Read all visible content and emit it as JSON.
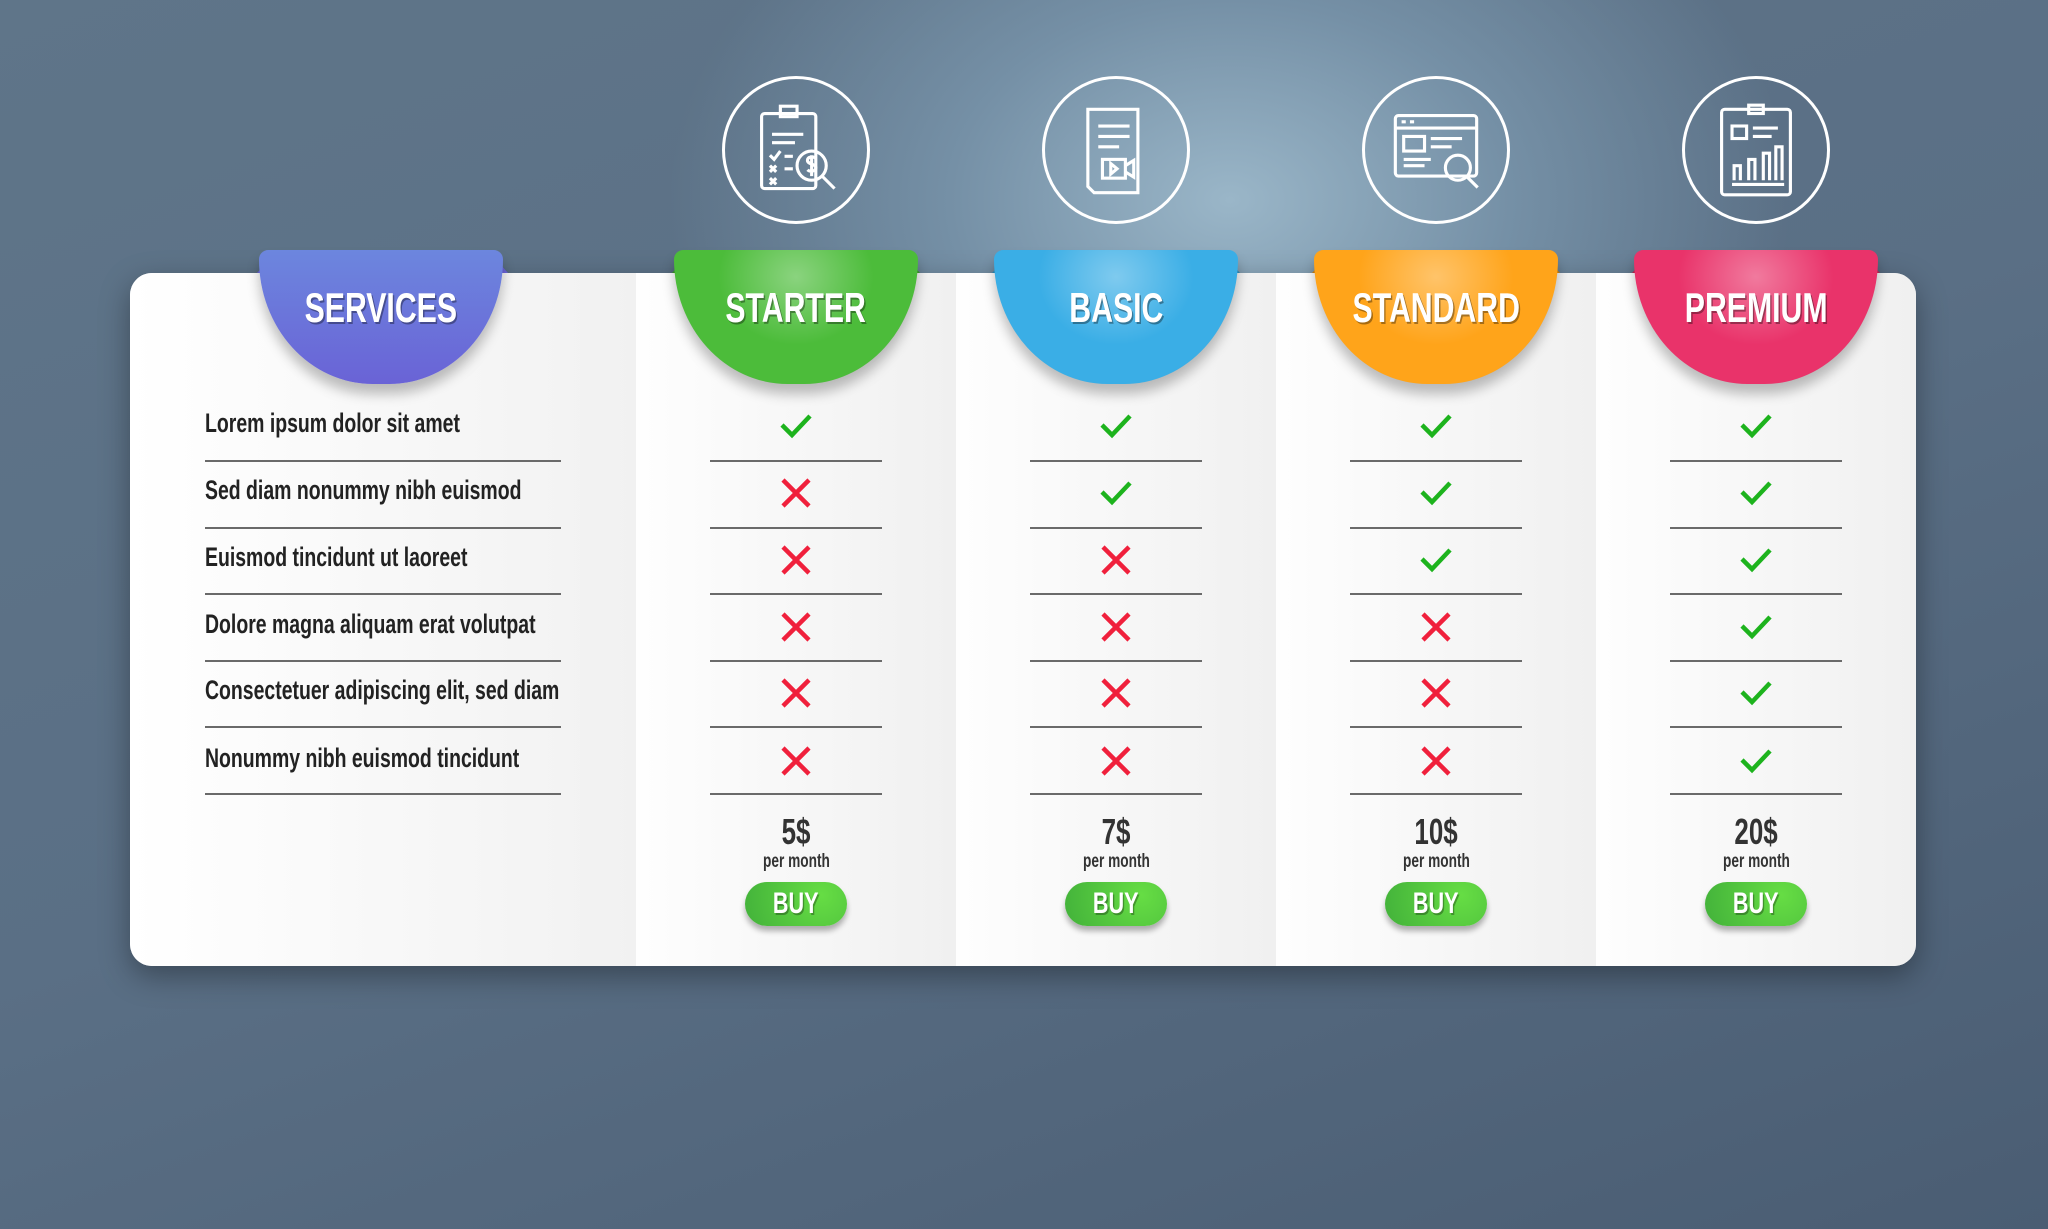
{
  "services": {
    "title": "SERVICES",
    "color": "#6a63d6",
    "features": [
      "Lorem ipsum dolor sit amet",
      "Sed diam nonummy nibh euismod",
      "Euismod tincidunt ut laoreet",
      "Dolore magna aliquam erat volutpat",
      "Consectetuer adipiscing elit, sed diam",
      "Nonummy nibh euismod tincidunt"
    ]
  },
  "plans": [
    {
      "name": "STARTER",
      "icon": "clipboard-dollar-search-icon",
      "color": "#4cbc3a",
      "price": "5$",
      "period": "per month",
      "buy_label": "BUY",
      "features": [
        true,
        false,
        false,
        false,
        false,
        false
      ]
    },
    {
      "name": "BASIC",
      "icon": "document-video-icon",
      "color": "#3aaee6",
      "price": "7$",
      "period": "per month",
      "buy_label": "BUY",
      "features": [
        true,
        true,
        false,
        false,
        false,
        false
      ]
    },
    {
      "name": "STANDARD",
      "icon": "web-page-search-icon",
      "color": "#ffa41a",
      "price": "10$",
      "period": "per month",
      "buy_label": "BUY",
      "features": [
        true,
        true,
        true,
        false,
        false,
        false
      ]
    },
    {
      "name": "PREMIUM",
      "icon": "report-chart-icon",
      "color": "#e9336a",
      "price": "20$",
      "period": "per month",
      "buy_label": "BUY",
      "features": [
        true,
        true,
        true,
        true,
        true,
        true
      ]
    }
  ],
  "colors": {
    "check": "#1db31d",
    "cross": "#f0203c",
    "buy": "#4cbc3a"
  }
}
